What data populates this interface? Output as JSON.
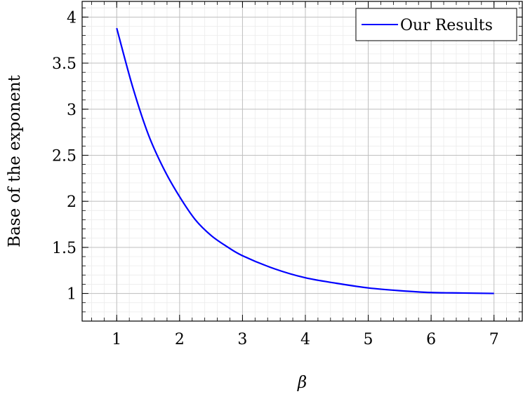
{
  "chart_data": {
    "type": "line",
    "title": "",
    "xlabel": "β",
    "ylabel": "Base of the exponent",
    "xlim": [
      0.45,
      7.45
    ],
    "ylim": [
      0.7,
      4.17
    ],
    "x_ticks": [
      1,
      2,
      3,
      4,
      5,
      6,
      7
    ],
    "x_tick_labels": [
      "1",
      "2",
      "3",
      "4",
      "5",
      "6",
      "7"
    ],
    "y_ticks": [
      1,
      1.5,
      2,
      2.5,
      3,
      3.5,
      4
    ],
    "y_tick_labels": [
      "1",
      "1.5",
      "2",
      "2.5",
      "3",
      "3.5",
      "4"
    ],
    "grid": true,
    "minor_grid": true,
    "legend_position": "top-right",
    "series": [
      {
        "name": "Our Results",
        "color": "#0000ff",
        "x": [
          1,
          1.25,
          1.5,
          1.75,
          2,
          2.25,
          2.5,
          2.75,
          3,
          3.5,
          4,
          4.5,
          5,
          5.5,
          6,
          6.5,
          7
        ],
        "y": [
          3.88,
          3.25,
          2.73,
          2.35,
          2.05,
          1.8,
          1.63,
          1.51,
          1.41,
          1.27,
          1.17,
          1.11,
          1.06,
          1.03,
          1.01,
          1.005,
          1.0
        ]
      }
    ]
  }
}
